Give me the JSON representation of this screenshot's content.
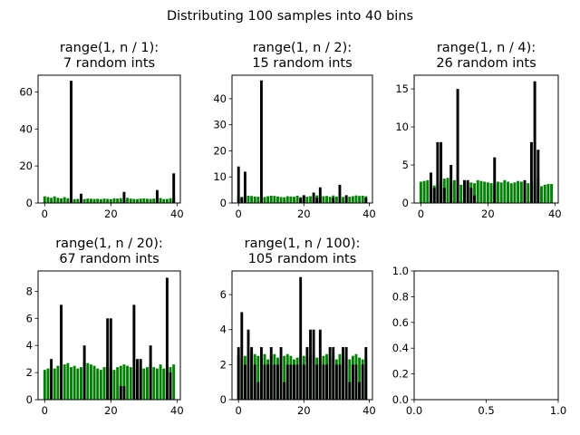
{
  "figure": {
    "suptitle": "Distributing 100 samples into 40 bins"
  },
  "colors": {
    "expected": "#008000",
    "observed": "#000000"
  },
  "chart_data": [
    {
      "type": "bar",
      "title_line1": "range(1, n / 1):",
      "title_line2": "7 random ints",
      "xlim": [
        -2,
        41
      ],
      "ylim": [
        0,
        69
      ],
      "xticks": [
        0,
        20,
        40
      ],
      "yticks": [
        0,
        20,
        40,
        60
      ],
      "series": [
        {
          "values": [
            3.6,
            3.2,
            2.8,
            3.6,
            2.8,
            2.5,
            3.2,
            2.6,
            2.2,
            2.1,
            2.2,
            2.6,
            2.1,
            2.4,
            2.3,
            2.2,
            2.3,
            2.1,
            2.4,
            2.2,
            2.1,
            2.5,
            2.4,
            2.6,
            2.9,
            2.8,
            2.4,
            2.2,
            2.1,
            2.4,
            2.5,
            2.3,
            2.2,
            2.4,
            2.9,
            2.7,
            2.1,
            2.2,
            2.6,
            2.7
          ]
        },
        {
          "values": [
            0,
            0,
            0,
            0,
            0,
            0,
            0,
            0,
            66,
            0,
            0,
            5,
            0,
            0,
            0,
            0,
            0,
            0,
            0,
            0,
            0,
            0,
            0,
            0,
            6,
            0,
            0,
            0,
            0,
            0,
            0,
            0,
            0,
            0,
            7,
            0,
            0,
            0,
            0,
            16
          ]
        }
      ]
    },
    {
      "type": "bar",
      "title_line1": "range(1, n / 2):",
      "title_line2": "15 random ints",
      "xlim": [
        -2,
        41
      ],
      "ylim": [
        0,
        49
      ],
      "xticks": [
        0,
        20,
        40
      ],
      "yticks": [
        0,
        10,
        20,
        30,
        40
      ],
      "series": [
        {
          "values": [
            2.2,
            2.4,
            2.4,
            2.8,
            2.7,
            2.5,
            2.4,
            2.2,
            2.3,
            2.6,
            2.8,
            2.7,
            2.5,
            2.3,
            2.2,
            2.6,
            2.5,
            2.4,
            2.8,
            2.2,
            2.6,
            2.4,
            2.6,
            2.7,
            2.9,
            3.3,
            2.6,
            2.7,
            2.4,
            2.9,
            2.5,
            2.2,
            2.3,
            2.2,
            2.4,
            2.6,
            2.9,
            2.7,
            2.8,
            2.6
          ]
        },
        {
          "values": [
            14,
            2,
            12,
            0,
            0,
            0,
            0,
            47,
            0,
            0,
            0,
            0,
            0,
            0,
            0,
            0,
            0,
            0,
            0,
            2,
            3,
            0,
            0,
            4,
            2,
            6,
            0,
            0,
            0,
            2,
            0,
            7,
            0,
            3,
            0,
            0,
            0,
            0,
            0,
            2
          ]
        }
      ]
    },
    {
      "type": "bar",
      "title_line1": "range(1, n / 4):",
      "title_line2": "26 random ints",
      "xlim": [
        -2,
        41
      ],
      "ylim": [
        0,
        16.8
      ],
      "xticks": [
        0,
        20,
        40
      ],
      "yticks": [
        0,
        5,
        10,
        15
      ],
      "series": [
        {
          "values": [
            2.8,
            2.9,
            3.0,
            2.6,
            2.3,
            2.5,
            2.9,
            3.2,
            3.3,
            2.6,
            3.0,
            3.1,
            2.4,
            2.6,
            2.8,
            2.7,
            2.6,
            3.0,
            2.9,
            2.8,
            2.7,
            2.6,
            2.5,
            2.8,
            2.7,
            3.0,
            2.8,
            2.6,
            2.7,
            2.9,
            2.8,
            2.5,
            2.6,
            2.7,
            2.8,
            3.2,
            2.2,
            2.4,
            2.5,
            2.5
          ]
        },
        {
          "values": [
            0,
            0,
            0,
            4,
            2,
            8,
            8,
            2,
            0,
            5,
            0,
            15,
            0,
            3,
            3,
            2,
            1,
            0,
            0,
            0,
            0,
            0,
            6,
            0,
            0,
            0,
            0,
            0,
            0,
            0,
            0,
            3,
            0,
            8,
            16,
            7,
            0,
            0,
            0,
            0
          ]
        }
      ]
    },
    {
      "type": "bar",
      "title_line1": "range(1, n / 20):",
      "title_line2": "67 random ints",
      "xlim": [
        -2,
        41
      ],
      "ylim": [
        0,
        9.5
      ],
      "xticks": [
        0,
        20,
        40
      ],
      "yticks": [
        0,
        2,
        4,
        6,
        8
      ],
      "series": [
        {
          "values": [
            2.2,
            2.3,
            2.2,
            2.3,
            2.5,
            2.1,
            2.6,
            2.7,
            2.4,
            2.5,
            2.3,
            2.4,
            2.7,
            2.7,
            2.6,
            2.5,
            2.3,
            2.2,
            2.4,
            2.5,
            2.3,
            2.2,
            2.4,
            2.5,
            2.6,
            2.5,
            2.4,
            2.3,
            2.6,
            2.5,
            2.3,
            2.4,
            2.7,
            2.4,
            2.3,
            2.6,
            2.3,
            2.5,
            2.4,
            2.6
          ]
        },
        {
          "values": [
            0,
            0,
            3,
            0,
            0,
            7,
            0,
            0,
            0,
            0,
            0,
            0,
            4,
            0,
            0,
            0,
            0,
            0,
            0,
            6,
            6,
            0,
            0,
            1,
            1,
            0,
            0,
            7,
            3,
            3,
            0,
            0,
            4,
            0,
            0,
            0,
            0,
            9,
            2,
            0
          ]
        }
      ]
    },
    {
      "type": "bar",
      "title_line1": "range(1, n / 100):",
      "title_line2": "105 random ints",
      "xlim": [
        -2,
        41
      ],
      "ylim": [
        0,
        7.35
      ],
      "xticks": [
        0,
        20,
        40
      ],
      "yticks": [
        0,
        2,
        4,
        6
      ],
      "series": [
        {
          "values": [
            2.6,
            2.3,
            2.5,
            2.4,
            2.7,
            2.6,
            2.5,
            2.4,
            2.6,
            2.3,
            2.5,
            2.6,
            2.4,
            2.3,
            2.5,
            2.6,
            2.5,
            2.3,
            2.4,
            2.6,
            2.5,
            2.4,
            2.5,
            2.6,
            2.4,
            2.3,
            2.5,
            2.6,
            2.4,
            2.5,
            2.3,
            2.6,
            2.5,
            2.4,
            2.3,
            2.5,
            2.6,
            2.4,
            2.3,
            2.4
          ]
        },
        {
          "values": [
            3,
            5,
            2,
            4,
            3,
            2,
            1,
            3,
            2,
            2,
            3,
            2,
            2,
            3,
            1,
            2,
            2,
            2,
            2,
            7,
            2,
            3,
            4,
            4,
            2,
            4,
            2,
            2,
            3,
            3,
            2,
            2,
            3,
            3,
            1,
            2,
            2,
            1,
            2,
            3
          ]
        }
      ]
    },
    {
      "type": "bar",
      "title_line1": "",
      "title_line2": "",
      "xlim": [
        0,
        1
      ],
      "ylim": [
        0,
        1
      ],
      "xticks": [
        0.0,
        0.5,
        1.0
      ],
      "yticks": [
        0.0,
        0.2,
        0.4,
        0.6,
        0.8,
        1.0
      ],
      "series": []
    }
  ]
}
